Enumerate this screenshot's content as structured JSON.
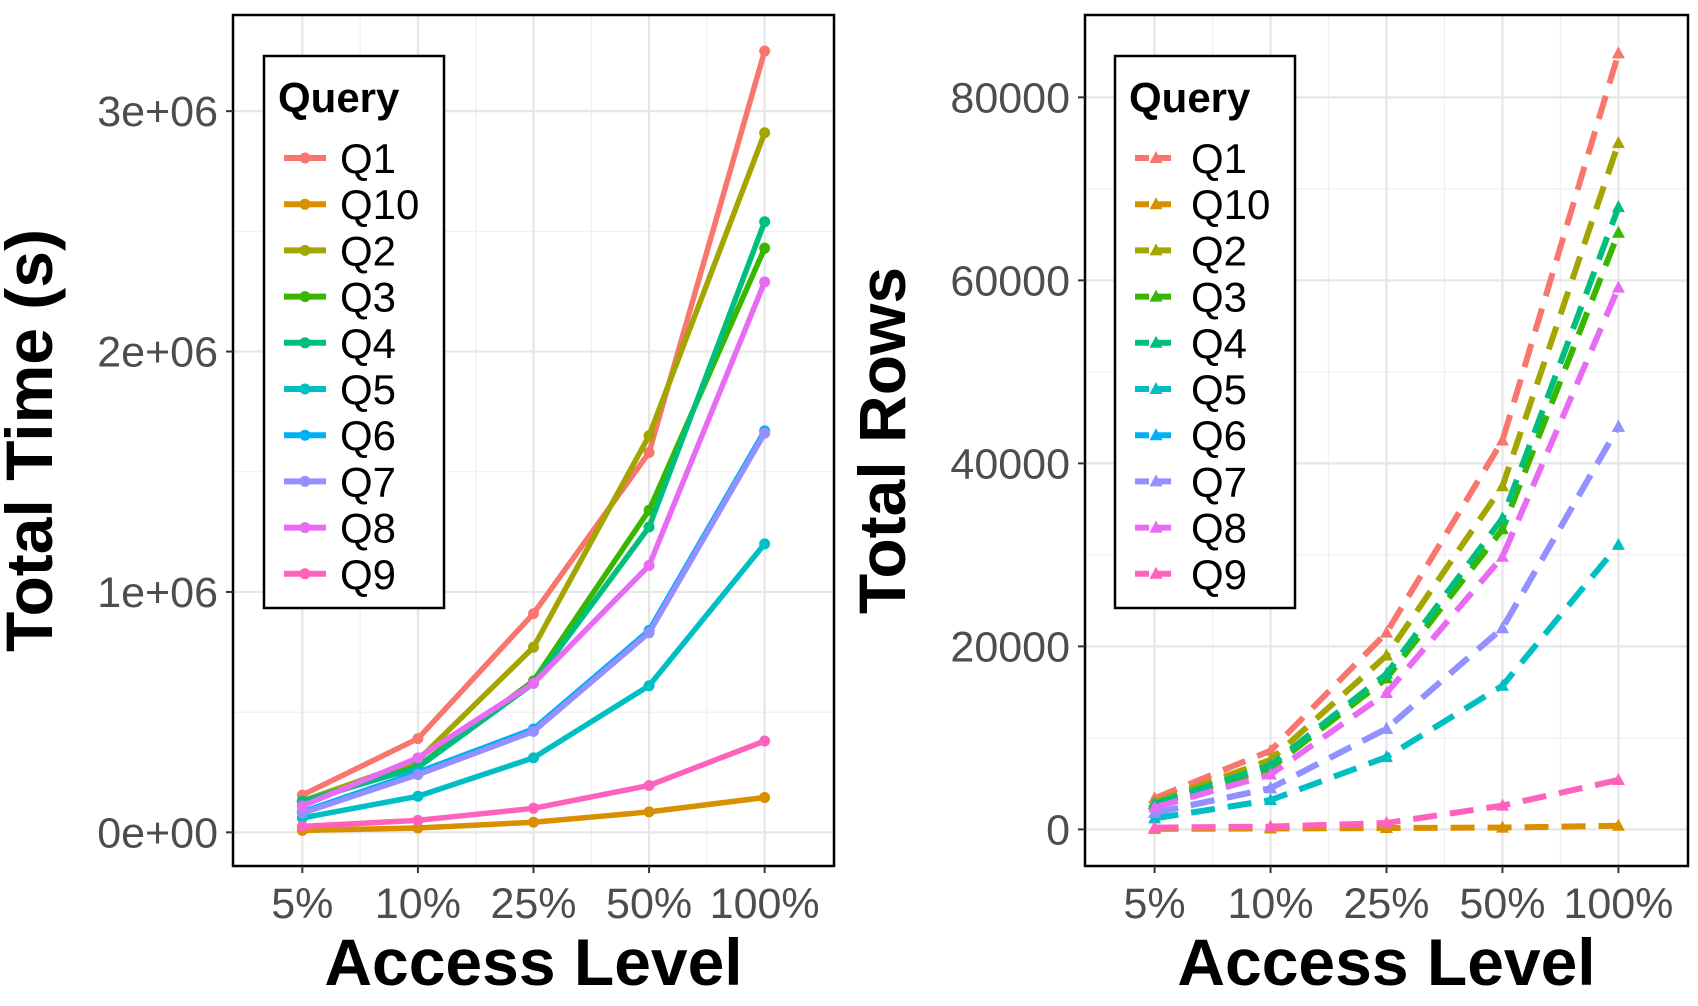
{
  "chart_data": [
    {
      "type": "line",
      "xlabel": "Access Level",
      "ylabel": "Total Time (s)",
      "categories": [
        "5%",
        "10%",
        "25%",
        "50%",
        "100%"
      ],
      "ylim": [
        -140000,
        3400000
      ],
      "yticks": [
        0,
        1000000,
        2000000,
        3000000
      ],
      "ytick_labels": [
        "0e+00",
        "1e+06",
        "2e+06",
        "3e+06"
      ],
      "grid": true,
      "line_style": "solid",
      "marker": "circle",
      "legend": {
        "title": "Query",
        "placement": "top-left"
      },
      "series": [
        {
          "name": "Q1",
          "color": "#F8766D",
          "values": [
            155000,
            390000,
            910000,
            1580000,
            3250000
          ]
        },
        {
          "name": "Q10",
          "color": "#D89000",
          "values": [
            8000,
            18000,
            42000,
            85000,
            145000
          ]
        },
        {
          "name": "Q2",
          "color": "#A3A500",
          "values": [
            130000,
            300000,
            770000,
            1650000,
            2910000
          ]
        },
        {
          "name": "Q3",
          "color": "#39B600",
          "values": [
            125000,
            275000,
            630000,
            1340000,
            2430000
          ]
        },
        {
          "name": "Q4",
          "color": "#00BF7D",
          "values": [
            130000,
            270000,
            620000,
            1270000,
            2540000
          ]
        },
        {
          "name": "Q5",
          "color": "#00BFC4",
          "values": [
            60000,
            150000,
            310000,
            610000,
            1200000
          ]
        },
        {
          "name": "Q6",
          "color": "#00B0F6",
          "values": [
            85000,
            250000,
            430000,
            840000,
            1670000
          ]
        },
        {
          "name": "Q7",
          "color": "#9590FF",
          "values": [
            80000,
            240000,
            420000,
            830000,
            1660000
          ]
        },
        {
          "name": "Q8",
          "color": "#E76BF3",
          "values": [
            110000,
            310000,
            620000,
            1110000,
            2290000
          ]
        },
        {
          "name": "Q9",
          "color": "#FF62BC",
          "values": [
            25000,
            50000,
            100000,
            195000,
            380000
          ]
        }
      ]
    },
    {
      "type": "line",
      "xlabel": "Access Level",
      "ylabel": "Total Rows",
      "categories": [
        "5%",
        "10%",
        "25%",
        "50%",
        "100%"
      ],
      "ylim": [
        -4000,
        89000
      ],
      "yticks": [
        0,
        20000,
        40000,
        60000,
        80000
      ],
      "ytick_labels": [
        "0",
        "20000",
        "40000",
        "60000",
        "80000"
      ],
      "grid": true,
      "line_style": "dashed",
      "marker": "triangle",
      "legend": {
        "title": "Query",
        "placement": "top-left"
      },
      "series": [
        {
          "name": "Q1",
          "color": "#F8766D",
          "values": [
            3400,
            8600,
            21500,
            42500,
            84800
          ]
        },
        {
          "name": "Q10",
          "color": "#D89000",
          "values": [
            60,
            100,
            150,
            200,
            400
          ]
        },
        {
          "name": "Q2",
          "color": "#A3A500",
          "values": [
            3000,
            7600,
            19000,
            37500,
            75000
          ]
        },
        {
          "name": "Q3",
          "color": "#39B600",
          "values": [
            2700,
            6700,
            16500,
            32800,
            65200
          ]
        },
        {
          "name": "Q4",
          "color": "#00BF7D",
          "values": [
            2800,
            7000,
            17000,
            34000,
            68000
          ]
        },
        {
          "name": "Q5",
          "color": "#00BFC4",
          "values": [
            1200,
            3200,
            7900,
            15700,
            31100
          ]
        },
        {
          "name": "Q6",
          "color": "#00B0F6",
          "values": [
            1800,
            4500,
            11000,
            22000,
            44000
          ]
        },
        {
          "name": "Q7",
          "color": "#9590FF",
          "values": [
            1800,
            4500,
            11000,
            22000,
            44000
          ]
        },
        {
          "name": "Q8",
          "color": "#E76BF3",
          "values": [
            2400,
            6000,
            14900,
            29800,
            59200
          ]
        },
        {
          "name": "Q9",
          "color": "#FF62BC",
          "values": [
            200,
            300,
            700,
            2600,
            5400
          ]
        }
      ]
    }
  ]
}
